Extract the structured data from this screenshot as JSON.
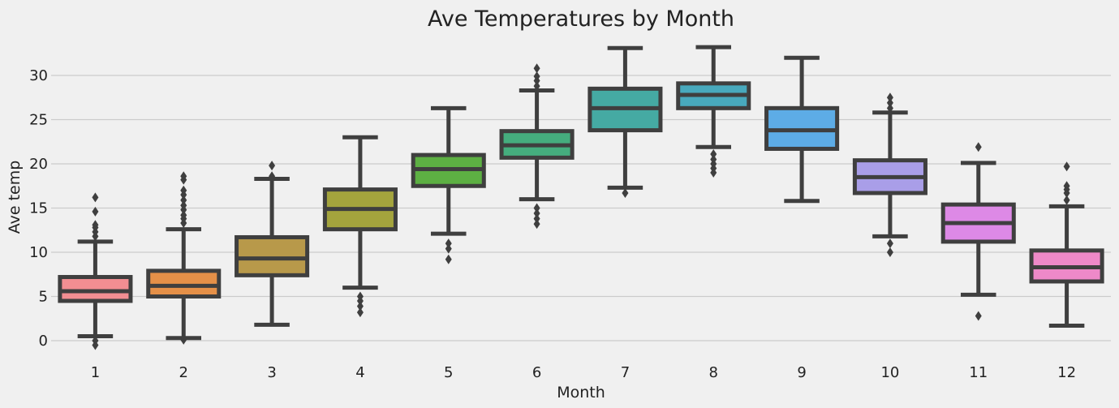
{
  "chart_data": {
    "type": "box",
    "title": "Ave Temperatures by Month",
    "xlabel": "Month",
    "ylabel": "Ave temp",
    "ylim": [
      -2.5,
      35
    ],
    "yticks": [
      0,
      5,
      10,
      15,
      20,
      25,
      30
    ],
    "grid": "horizontal",
    "categories": [
      "1",
      "2",
      "3",
      "4",
      "5",
      "6",
      "7",
      "8",
      "9",
      "10",
      "11",
      "12"
    ],
    "boxes": [
      {
        "month": "1",
        "color": "#f28e92",
        "whisker_low": 0.5,
        "q1": 4.5,
        "median": 5.6,
        "q3": 7.2,
        "whisker_high": 11.2,
        "outliers": [
          -0.5,
          0.0,
          11.8,
          12.3,
          12.8,
          13.1,
          14.6,
          16.2
        ]
      },
      {
        "month": "2",
        "color": "#e59048",
        "whisker_low": 0.3,
        "q1": 5.0,
        "median": 6.2,
        "q3": 7.9,
        "whisker_high": 12.6,
        "outliers": [
          0.1,
          13.3,
          13.8,
          14.2,
          14.8,
          15.3,
          15.9,
          16.5,
          17.0,
          18.2,
          18.6
        ]
      },
      {
        "month": "3",
        "color": "#b8994a",
        "whisker_low": 1.8,
        "q1": 7.4,
        "median": 9.3,
        "q3": 11.7,
        "whisker_high": 18.3,
        "outliers": [
          18.6,
          19.8
        ]
      },
      {
        "month": "4",
        "color": "#a4a43d",
        "whisker_low": 6.0,
        "q1": 12.6,
        "median": 14.9,
        "q3": 17.1,
        "whisker_high": 23.0,
        "outliers": [
          3.2,
          3.9,
          4.5,
          5.0
        ]
      },
      {
        "month": "5",
        "color": "#5db043",
        "whisker_low": 12.1,
        "q1": 17.5,
        "median": 19.4,
        "q3": 21.0,
        "whisker_high": 26.3,
        "outliers": [
          9.2,
          10.4,
          11.0
        ]
      },
      {
        "month": "6",
        "color": "#45ad7e",
        "whisker_low": 16.0,
        "q1": 20.7,
        "median": 22.1,
        "q3": 23.7,
        "whisker_high": 28.3,
        "outliers": [
          13.2,
          13.8,
          14.4,
          15.0,
          28.8,
          29.4,
          29.9,
          30.8
        ]
      },
      {
        "month": "7",
        "color": "#45aaa3",
        "whisker_low": 17.3,
        "q1": 23.8,
        "median": 26.3,
        "q3": 28.5,
        "whisker_high": 33.1,
        "outliers": [
          16.7
        ]
      },
      {
        "month": "8",
        "color": "#48a9bd",
        "whisker_low": 21.9,
        "q1": 26.3,
        "median": 27.8,
        "q3": 29.1,
        "whisker_high": 33.2,
        "outliers": [
          19.0,
          19.5,
          20.0,
          20.5,
          21.1
        ]
      },
      {
        "month": "9",
        "color": "#5dace6",
        "whisker_low": 15.8,
        "q1": 21.7,
        "median": 23.8,
        "q3": 26.3,
        "whisker_high": 32.0,
        "outliers": []
      },
      {
        "month": "10",
        "color": "#a99ee8",
        "whisker_low": 11.8,
        "q1": 16.7,
        "median": 18.5,
        "q3": 20.4,
        "whisker_high": 25.8,
        "outliers": [
          10.0,
          11.0,
          26.3,
          26.9,
          27.5
        ]
      },
      {
        "month": "11",
        "color": "#dd89e6",
        "whisker_low": 5.2,
        "q1": 11.2,
        "median": 13.3,
        "q3": 15.4,
        "whisker_high": 20.1,
        "outliers": [
          2.8,
          21.9
        ]
      },
      {
        "month": "12",
        "color": "#ee89c8",
        "whisker_low": 1.7,
        "q1": 6.7,
        "median": 8.3,
        "q3": 10.2,
        "whisker_high": 15.2,
        "outliers": [
          15.9,
          16.7,
          17.1,
          17.5,
          19.7
        ]
      }
    ]
  }
}
